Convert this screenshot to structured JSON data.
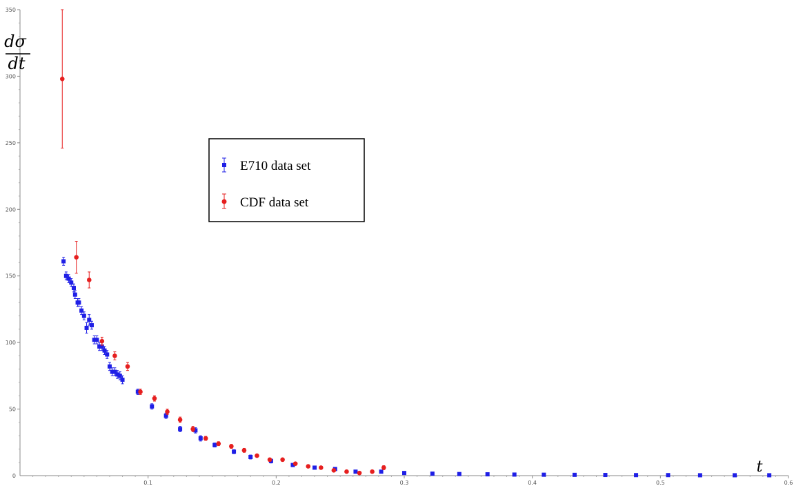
{
  "chart_data": {
    "type": "scatter",
    "title": "",
    "xlabel": "t",
    "ylabel_numerator": "dσ",
    "ylabel_denominator": "dt",
    "xlim": [
      0,
      0.6
    ],
    "ylim": [
      0,
      350
    ],
    "x_ticks": [
      "0.1",
      "0.2",
      "0.3",
      "0.4",
      "0.5",
      "0.6"
    ],
    "y_ticks": [
      "50",
      "100",
      "150",
      "200",
      "250",
      "300",
      "350"
    ],
    "grid": false,
    "legend_position": "upper-middle",
    "series": [
      {
        "name": "E710 data set",
        "color": "#1f1fe6",
        "points": [
          [
            0.034,
            161,
            3
          ],
          [
            0.036,
            150,
            3
          ],
          [
            0.038,
            148,
            3
          ],
          [
            0.04,
            145,
            3
          ],
          [
            0.042,
            141,
            3
          ],
          [
            0.043,
            136,
            3
          ],
          [
            0.045,
            130,
            3
          ],
          [
            0.046,
            130,
            3
          ],
          [
            0.048,
            124,
            3
          ],
          [
            0.05,
            120,
            3
          ],
          [
            0.052,
            111,
            4
          ],
          [
            0.054,
            117,
            4
          ],
          [
            0.056,
            113,
            3
          ],
          [
            0.058,
            102,
            3
          ],
          [
            0.06,
            102,
            3
          ],
          [
            0.062,
            97,
            3
          ],
          [
            0.064,
            97,
            3
          ],
          [
            0.066,
            94,
            3
          ],
          [
            0.068,
            91,
            3
          ],
          [
            0.07,
            82,
            3
          ],
          [
            0.072,
            78,
            3
          ],
          [
            0.074,
            78,
            3
          ],
          [
            0.076,
            76,
            3
          ],
          [
            0.078,
            75,
            3
          ],
          [
            0.08,
            72,
            3
          ],
          [
            0.092,
            63,
            2
          ],
          [
            0.103,
            52,
            2
          ],
          [
            0.114,
            45,
            2
          ],
          [
            0.125,
            35,
            2
          ],
          [
            0.137,
            34,
            2
          ],
          [
            0.141,
            28,
            2
          ],
          [
            0.152,
            23,
            1.5
          ],
          [
            0.167,
            18,
            1.5
          ],
          [
            0.18,
            14,
            1.5
          ],
          [
            0.196,
            11,
            1.5
          ],
          [
            0.213,
            8,
            1
          ],
          [
            0.23,
            6,
            1
          ],
          [
            0.246,
            5,
            1
          ],
          [
            0.262,
            3,
            1
          ],
          [
            0.282,
            3,
            1
          ],
          [
            0.3,
            2,
            0.5
          ],
          [
            0.322,
            1.5,
            0.5
          ],
          [
            0.343,
            1.2,
            0.5
          ],
          [
            0.365,
            1,
            0.4
          ],
          [
            0.386,
            0.8,
            0.4
          ],
          [
            0.409,
            0.7,
            0.3
          ],
          [
            0.433,
            0.6,
            0.3
          ],
          [
            0.457,
            0.5,
            0.3
          ],
          [
            0.481,
            0.4,
            0.2
          ],
          [
            0.506,
            0.4,
            0.2
          ],
          [
            0.531,
            0.3,
            0.2
          ],
          [
            0.558,
            0.3,
            0.2
          ],
          [
            0.585,
            0.3,
            0.2
          ]
        ]
      },
      {
        "name": "CDF data set",
        "color": "#e61f1f",
        "points": [
          [
            0.033,
            298,
            52
          ],
          [
            0.044,
            164,
            12
          ],
          [
            0.054,
            147,
            6
          ],
          [
            0.064,
            101,
            3
          ],
          [
            0.074,
            90,
            3
          ],
          [
            0.084,
            82,
            3
          ],
          [
            0.094,
            63,
            2
          ],
          [
            0.105,
            58,
            2
          ],
          [
            0.115,
            48,
            2
          ],
          [
            0.125,
            42,
            2
          ],
          [
            0.135,
            35,
            2
          ],
          [
            0.145,
            28,
            1.5
          ],
          [
            0.155,
            24,
            1.5
          ],
          [
            0.165,
            22,
            1.5
          ],
          [
            0.175,
            19,
            1.5
          ],
          [
            0.185,
            15,
            1
          ],
          [
            0.195,
            12,
            1
          ],
          [
            0.205,
            12,
            1
          ],
          [
            0.215,
            9,
            1
          ],
          [
            0.225,
            7,
            1
          ],
          [
            0.235,
            6,
            1
          ],
          [
            0.245,
            4,
            1
          ],
          [
            0.255,
            3,
            1
          ],
          [
            0.265,
            2,
            1
          ],
          [
            0.275,
            3,
            1
          ],
          [
            0.284,
            6,
            1.5
          ]
        ]
      }
    ]
  }
}
